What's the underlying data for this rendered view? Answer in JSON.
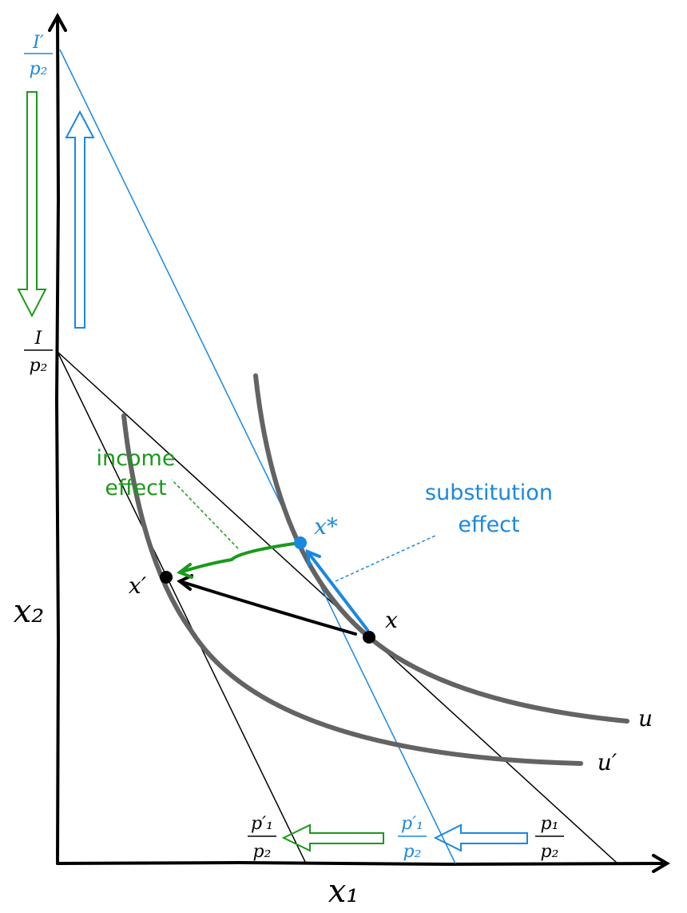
{
  "axes": {
    "x_label": "x₁",
    "y_label": "x₂"
  },
  "intercepts": {
    "y_new": {
      "num": "I′",
      "den": "p₂"
    },
    "y_old": {
      "num": "I",
      "den": "p₂"
    },
    "x_new": {
      "num": "p′₁",
      "den": "p₂"
    },
    "x_mid": {
      "num": "p′₁",
      "den": "p₂"
    },
    "x_old": {
      "num": "p₁",
      "den": "p₂"
    }
  },
  "points": {
    "x_star": "x*",
    "x_prime": "x′",
    "x": "x"
  },
  "curves": {
    "u": "u",
    "u_prime": "u′"
  },
  "annotations": {
    "income_effect": [
      "income",
      "effect"
    ],
    "substitution_effect": [
      "substitution",
      "effect"
    ]
  }
}
